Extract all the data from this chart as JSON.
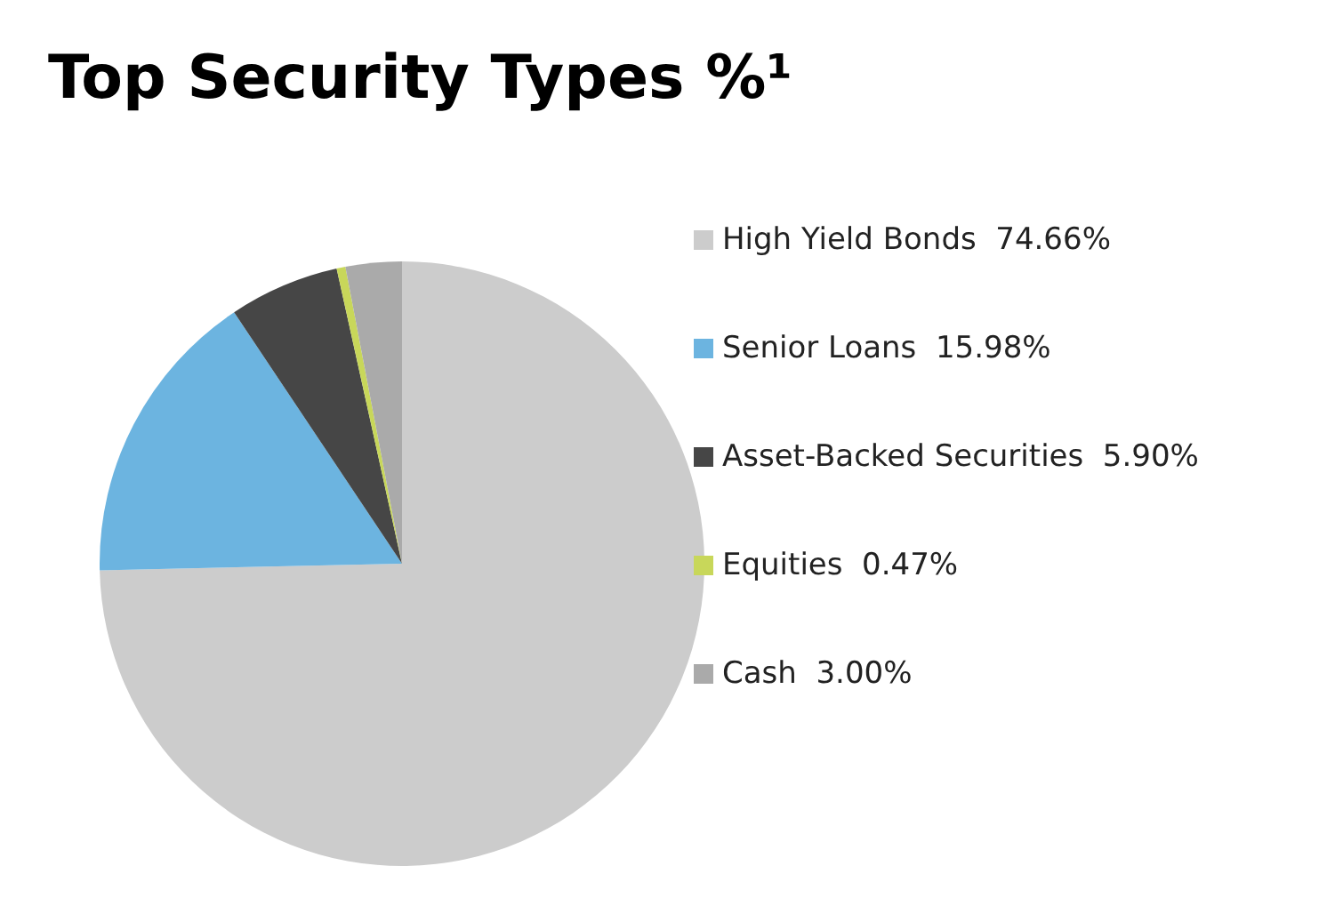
{
  "chart_data": {
    "type": "pie",
    "title": "Top Security Types %¹",
    "categories": [
      "High Yield Bonds",
      "Senior Loans",
      "Asset-Backed Securities",
      "Equities",
      "Cash"
    ],
    "values": [
      74.66,
      15.98,
      5.9,
      0.47,
      3.0
    ],
    "value_labels": [
      "74.66%",
      "15.98%",
      "5.90%",
      "0.47%",
      "3.00%"
    ],
    "colors": [
      "#cccccc",
      "#6cb4e0",
      "#464646",
      "#c8d75a",
      "#aaaaaa"
    ],
    "legend": "right"
  }
}
